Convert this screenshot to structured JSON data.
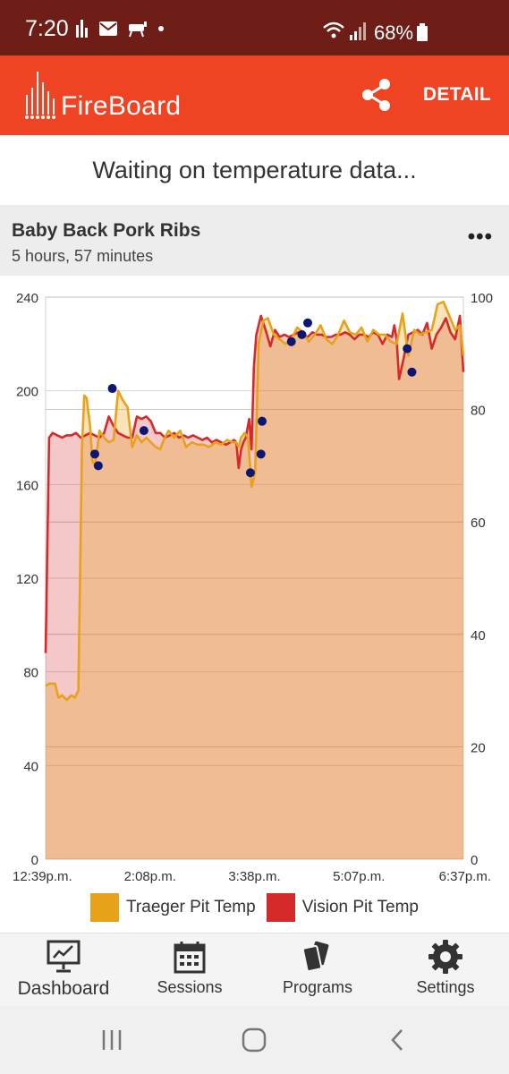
{
  "status_bar": {
    "time": "7:20",
    "battery": "68%"
  },
  "app_bar": {
    "logo_text": "FireBoard",
    "detail_label": "DETAIL"
  },
  "banner": {
    "message": "Waiting on temperature data..."
  },
  "session": {
    "title": "Baby Back Pork Ribs",
    "duration": "5 hours, 57 minutes"
  },
  "legend": {
    "traeger_label": "Traeger Pit Temp",
    "vision_label": "Vision Pit Temp"
  },
  "colors": {
    "accent": "#ef4424",
    "statusbar": "#6e1e16",
    "traeger": "#e8a21a",
    "vision": "#d62a2a",
    "marker": "#0e1673"
  },
  "nav": {
    "dashboard": "Dashboard",
    "sessions": "Sessions",
    "programs": "Programs",
    "settings": "Settings"
  },
  "chart_data": {
    "type": "area",
    "categories": [
      "12:39p.m.",
      "2:08p.m.",
      "3:38p.m.",
      "5:07p.m.",
      "6:37p.m."
    ],
    "x_minutes": [
      0,
      357
    ],
    "ylim": [
      0,
      240
    ],
    "y_ticks": [
      0,
      40,
      80,
      120,
      160,
      200,
      240
    ],
    "y2lim": [
      0,
      100
    ],
    "y2_ticks": [
      0,
      20,
      40,
      60,
      80,
      100
    ],
    "series": [
      {
        "name": "Traeger Pit Temp",
        "x": [
          0,
          3,
          8,
          11,
          14,
          18,
          22,
          25,
          28,
          31,
          33,
          35,
          38,
          40,
          42,
          44,
          46,
          50,
          54,
          58,
          62,
          66,
          70,
          74,
          78,
          82,
          86,
          90,
          94,
          98,
          100,
          105,
          110,
          115,
          120,
          125,
          130,
          135,
          140,
          145,
          150,
          155,
          160,
          163,
          165,
          167,
          170,
          173,
          176,
          179,
          182,
          186,
          190,
          195,
          200,
          205,
          210,
          215,
          220,
          225,
          230,
          235,
          240,
          245,
          250,
          255,
          260,
          265,
          270,
          275,
          280,
          285,
          290,
          295,
          300,
          305,
          310,
          315,
          320,
          325,
          330,
          335,
          340,
          345,
          350,
          354,
          357
        ],
        "values": [
          74,
          75,
          75,
          69,
          70,
          68,
          70,
          69,
          72,
          175,
          198,
          197,
          185,
          170,
          168,
          175,
          183,
          180,
          178,
          179,
          200,
          196,
          193,
          176,
          181,
          178,
          180,
          178,
          176,
          175,
          178,
          183,
          180,
          183,
          176,
          178,
          177,
          177,
          176,
          178,
          177,
          179,
          178,
          178,
          176,
          180,
          182,
          180,
          159,
          165,
          220,
          230,
          231,
          224,
          222,
          220,
          222,
          227,
          225,
          221,
          224,
          228,
          222,
          220,
          224,
          230,
          225,
          224,
          227,
          221,
          226,
          224,
          224,
          221,
          220,
          233,
          215,
          226,
          224,
          225,
          226,
          237,
          238,
          232,
          226,
          228,
          215
        ]
      },
      {
        "name": "Vision Pit Temp",
        "x": [
          0,
          3,
          6,
          10,
          14,
          18,
          22,
          26,
          30,
          34,
          38,
          42,
          46,
          50,
          54,
          58,
          62,
          66,
          70,
          74,
          78,
          82,
          86,
          90,
          94,
          98,
          102,
          106,
          110,
          114,
          118,
          122,
          126,
          130,
          134,
          138,
          142,
          146,
          150,
          154,
          158,
          161,
          163,
          165,
          167,
          169,
          171,
          174,
          176,
          178,
          180,
          184,
          188,
          192,
          196,
          200,
          204,
          208,
          212,
          216,
          220,
          224,
          228,
          232,
          236,
          240,
          244,
          248,
          252,
          256,
          260,
          264,
          268,
          272,
          276,
          280,
          284,
          288,
          292,
          296,
          298,
          300,
          302,
          306,
          310,
          314,
          318,
          322,
          326,
          330,
          334,
          338,
          342,
          346,
          350,
          354,
          357
        ],
        "values": [
          88,
          180,
          182,
          181,
          180,
          181,
          181,
          182,
          180,
          181,
          182,
          181,
          180,
          182,
          189,
          185,
          182,
          181,
          180,
          180,
          189,
          188,
          189,
          187,
          182,
          182,
          180,
          181,
          182,
          180,
          181,
          180,
          181,
          180,
          179,
          180,
          178,
          179,
          178,
          177,
          178,
          179,
          178,
          167,
          175,
          178,
          180,
          188,
          175,
          210,
          224,
          232,
          226,
          219,
          226,
          223,
          224,
          223,
          224,
          225,
          224,
          223,
          225,
          224,
          224,
          223,
          223,
          224,
          224,
          225,
          224,
          222,
          224,
          224,
          223,
          225,
          224,
          220,
          224,
          223,
          228,
          222,
          205,
          214,
          224,
          225,
          226,
          224,
          229,
          218,
          224,
          227,
          231,
          225,
          222,
          232,
          208
        ]
      }
    ],
    "markers": {
      "x": [
        42,
        45,
        57,
        84,
        175,
        185,
        184,
        210,
        219,
        224,
        309,
        313
      ],
      "values": [
        173,
        168,
        201,
        183,
        165,
        187,
        173,
        221,
        224,
        229,
        218,
        208
      ]
    }
  }
}
